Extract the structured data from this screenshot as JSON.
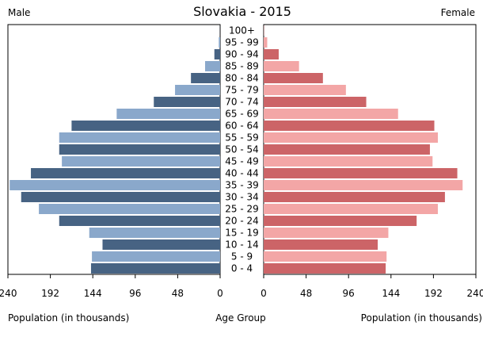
{
  "chart_data": {
    "type": "bar",
    "title": "Slovakia - 2015",
    "left_label": "Male",
    "right_label": "Female",
    "xlabel_left": "Population (in thousands)",
    "xlabel_center": "Age Group",
    "xlabel_right": "Population (in thousands)",
    "xlim": [
      0,
      240
    ],
    "ticks": [
      240,
      192,
      144,
      96,
      48,
      0
    ],
    "ticks_right": [
      0,
      48,
      96,
      144,
      192,
      240
    ],
    "categories": [
      "100+",
      "95 - 99",
      "90 - 94",
      "85 - 89",
      "80 - 84",
      "75 - 79",
      "70 - 74",
      "65 - 69",
      "60 - 64",
      "55 - 59",
      "50 - 54",
      "45 - 49",
      "40 - 44",
      "35 - 39",
      "30 - 34",
      "25 - 29",
      "20 - 24",
      "15 - 19",
      "10 - 14",
      "5 - 9",
      "0 - 4"
    ],
    "series": [
      {
        "name": "Male",
        "values": [
          0.1,
          1.5,
          6.5,
          17,
          33,
          51,
          75,
          117,
          168,
          182,
          182,
          179,
          214,
          238,
          225,
          205,
          182,
          148,
          133,
          145,
          146
        ]
      },
      {
        "name": "Female",
        "values": [
          0.3,
          4,
          17,
          40,
          67,
          93,
          116,
          152,
          193,
          197,
          188,
          191,
          219,
          225,
          205,
          197,
          173,
          141,
          129,
          139,
          138
        ]
      }
    ],
    "colors": {
      "male_dark": "#476383",
      "male_light": "#8aa8cb",
      "female_dark": "#cc6467",
      "female_light": "#f3a6a6"
    },
    "grid": false
  }
}
